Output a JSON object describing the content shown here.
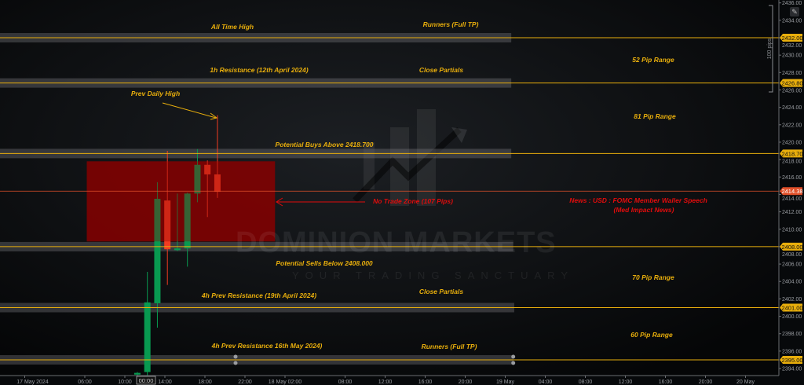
{
  "chart_data": {
    "type": "candlestick",
    "instrument_unit": "price",
    "ylim": [
      2393.2,
      2436.4
    ],
    "price_ticks": [
      "2436.00",
      "2434.00",
      "2432.00",
      "2430.00",
      "2428.00",
      "2426.00",
      "2424.00",
      "2422.00",
      "2420.00",
      "2418.00",
      "2416.00",
      "2414.00",
      "2412.00",
      "2410.00",
      "2408.00",
      "2406.00",
      "2404.00",
      "2402.00",
      "2400.00",
      "2398.00",
      "2396.00",
      "2394.00"
    ],
    "time_ticks": [
      {
        "label": "17 May 2024",
        "hour": 0
      },
      {
        "label": "06:00",
        "hour": 6
      },
      {
        "label": "10:00",
        "hour": 10
      },
      {
        "label": "14:00",
        "hour": 14
      },
      {
        "label": "18:00",
        "hour": 18
      },
      {
        "label": "22:00",
        "hour": 22
      },
      {
        "label": "18 May 02:00",
        "hour": 26
      },
      {
        "label": "08:00",
        "hour": 32
      },
      {
        "label": "12:00",
        "hour": 36
      },
      {
        "label": "16:00",
        "hour": 40
      },
      {
        "label": "20:00",
        "hour": 44
      },
      {
        "label": "19 May",
        "hour": 48
      },
      {
        "label": "04:00",
        "hour": 52
      },
      {
        "label": "08:00",
        "hour": 56
      },
      {
        "label": "12:00",
        "hour": 60
      },
      {
        "label": "16:00",
        "hour": 64
      },
      {
        "label": "20:00",
        "hour": 68
      },
      {
        "label": "20 May",
        "hour": 72
      }
    ],
    "crosshair_time_label": "00:00",
    "candles": [
      {
        "time": "17 May 11:00",
        "hour": 11,
        "open": 2393.3,
        "high": 2393.6,
        "low": 2393.2,
        "close": 2393.5
      },
      {
        "time": "17 May 12:00",
        "hour": 12,
        "open": 2393.6,
        "high": 2405.1,
        "low": 2393.2,
        "close": 2401.6
      },
      {
        "time": "17 May 13:00",
        "hour": 13,
        "open": 2401.5,
        "high": 2415.4,
        "low": 2398.7,
        "close": 2413.5
      },
      {
        "time": "17 May 14:00",
        "hour": 14,
        "open": 2413.3,
        "high": 2419.0,
        "low": 2403.6,
        "close": 2407.7
      },
      {
        "time": "17 May 15:00",
        "hour": 15,
        "open": 2407.6,
        "high": 2414.1,
        "low": 2407.5,
        "close": 2407.8
      },
      {
        "time": "17 May 16:00",
        "hour": 16,
        "open": 2407.8,
        "high": 2414.2,
        "low": 2405.7,
        "close": 2414.1
      },
      {
        "time": "17 May 17:00",
        "hour": 17,
        "open": 2414.1,
        "high": 2419.2,
        "low": 2413.1,
        "close": 2417.4
      },
      {
        "time": "17 May 18:00",
        "hour": 18,
        "open": 2417.4,
        "high": 2417.9,
        "low": 2411.4,
        "close": 2416.3
      },
      {
        "time": "17 May 19:00",
        "hour": 19,
        "open": 2416.3,
        "high": 2423.1,
        "low": 2413.6,
        "close": 2414.3
      }
    ],
    "levels": [
      {
        "price": 2432.0,
        "label": "2432.00",
        "band_end_hour": 48.6
      },
      {
        "price": 2426.8,
        "label": "2426.80",
        "band_end_hour": 48.6
      },
      {
        "price": 2418.7,
        "label": "2418.70",
        "band_end_hour": 48.6
      },
      {
        "price": 2408.0,
        "label": "2408.00",
        "band_end_hour": 48.8
      },
      {
        "price": 2401.0,
        "label": "2401.00",
        "band_end_hour": 48.9
      },
      {
        "price": 2395.0,
        "label": "2395.00",
        "band_end_hour": 48.8
      }
    ],
    "last_price": {
      "price": 2414.38,
      "label": "2414.38"
    },
    "no_trade_zone": {
      "top": 2417.8,
      "bottom": 2408.6,
      "start_hour": 6.2,
      "end_hour": 25
    },
    "measure": {
      "label": "100 pips",
      "from": 2436.0,
      "to": 2426.0
    },
    "annotations": {
      "all_time_high": "All Time High",
      "runners_top": "Runners (Full TP)",
      "range_52": "52 Pip Range",
      "res_1h": "1h Resistance (12th April 2024)",
      "close_partials_top": "Close Partials",
      "prev_daily_high": "Prev Daily High",
      "range_81": "81 Pip Range",
      "potential_buys": "Potential Buys Above 2418.700",
      "no_trade_zone": "No Trade Zone (107 Pips)",
      "news_line1": "News : USD : FOMC Member Waller Speech",
      "news_line2": "(Med Impact News)",
      "potential_sells": "Potential Sells Below 2408.000",
      "range_70": "70 Pip Range",
      "res_4h_19apr": "4h Prev Resistance (19th April 2024)",
      "close_partials_bottom": "Close Partials",
      "range_60": "60 Pip Range",
      "res_4h_16may": "4h Prev Resistance 16th May 2024)",
      "runners_bottom": "Runners (Full TP)"
    },
    "colors": {
      "level": "#e8ae0c",
      "up": "#089950",
      "down": "#f23b22",
      "zone": "#8b0000",
      "last_price": "#e0502a",
      "annotation_red": "#e00c0c"
    }
  },
  "watermark": {
    "brand": "DOMINION MARKETS",
    "tagline": "YOUR TRADING SANCTUARY"
  },
  "toolbar": {
    "edit_icon": "edit-icon"
  }
}
